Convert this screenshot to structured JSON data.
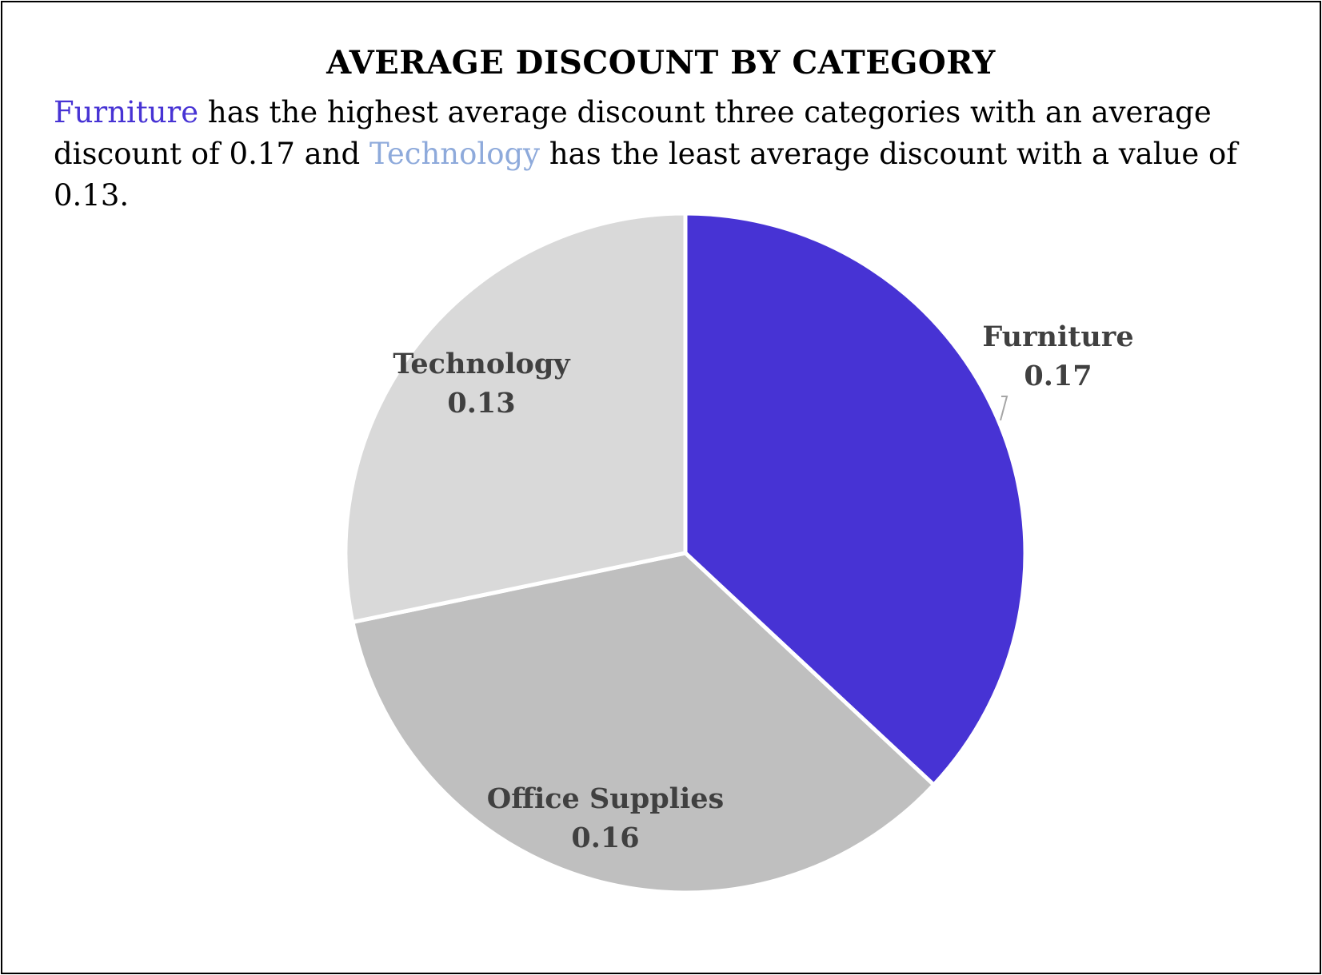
{
  "title": "AVERAGE DISCOUNT BY CATEGORY",
  "description": {
    "furniture_word": "Furniture",
    "part1": " has the highest average discount three categories with an average discount of 0.17 and ",
    "technology_word": "Technology",
    "part2": " has the least average discount with a value of 0.13."
  },
  "colors": {
    "furniture": "#4733d4",
    "office_supplies": "#bfbfbf",
    "technology": "#d9d9d9",
    "highlight_technology_text": "#8eaadb",
    "label_text": "#404040"
  },
  "chart_data": {
    "type": "pie",
    "title": "AVERAGE DISCOUNT BY CATEGORY",
    "categories": [
      "Furniture",
      "Office Supplies",
      "Technology"
    ],
    "values": [
      0.17,
      0.16,
      0.13
    ],
    "value_labels": [
      "0.17",
      "0.16",
      "0.13"
    ],
    "start": "12 o'clock, clockwise",
    "legend": "none (data labels on slices)"
  }
}
